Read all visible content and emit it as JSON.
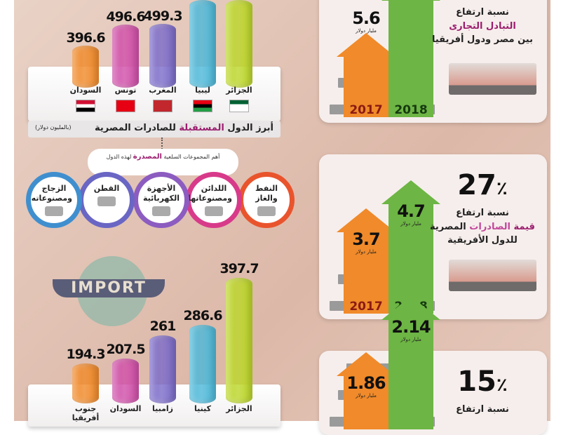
{
  "colors": {
    "orange": "#f08a2a",
    "pink": "#d04fa9",
    "purple": "#7c6cc9",
    "cyan": "#4db8d8",
    "lime": "#bcd62a",
    "green": "#6db544",
    "highlight": "#9b1d6e"
  },
  "chart_data": [
    {
      "type": "bar",
      "title": "أبرز الدول المستقبلة للصادرات المصرية",
      "unit": "(بالمليون دولار)",
      "categories": [
        "السودان",
        "تونس",
        "المغرب",
        "ليبيا",
        "الجزائر"
      ],
      "values": [
        396.6,
        496.6,
        499.3,
        null,
        null
      ],
      "value_labels": [
        "396.6",
        "496.6",
        "499.3",
        "",
        ""
      ]
    },
    {
      "type": "bar",
      "categories": [
        "جنوب أفريقيا",
        "السودان",
        "زامبيا",
        "كينيا",
        "الجزائر"
      ],
      "values": [
        194.3,
        207.5,
        261,
        286.6,
        397.7
      ],
      "value_labels": [
        "194.3",
        "207.5",
        "261",
        "286.6",
        "397.7"
      ]
    }
  ],
  "exports": {
    "title_a": "أبرز الدول ",
    "title_hl": "المستقبلة",
    "title_b": " للصادرات المصرية",
    "unit": "(بالمليون دولار)"
  },
  "goods": {
    "caption_a": "أهم المجموعات السلعية ",
    "caption_hl": "المصدرة",
    "caption_b": " لهذه الدول",
    "items": [
      {
        "label": "النفط والغاز",
        "icon": "oil-barrel-icon"
      },
      {
        "label": "اللدائن ومصنوعاتها",
        "icon": "plastic-bottles-icon"
      },
      {
        "label": "الأجهزة الكهربائية",
        "icon": "appliances-icon"
      },
      {
        "label": "القطن",
        "icon": "cotton-icon"
      },
      {
        "label": "الزجاج ومصنوعاته",
        "icon": "glass-door-icon"
      }
    ]
  },
  "imports": {
    "banner": "IMPORT"
  },
  "panels": [
    {
      "pct": "",
      "line1": "نسبة ارتفاع",
      "line2": "التبادل التجارى",
      "line3": "بين مصر ودول أفريقيا",
      "v2017": "",
      "v2018": "5.6",
      "unit": "مليار دولار",
      "y2017": "2017",
      "y2018": "2018"
    },
    {
      "pct": "27",
      "pct_sign": "٪",
      "line1": "نسبة ارتفاع",
      "line2a": "قيمة ",
      "line2b": "الصادرات",
      "line2c": " المصرية",
      "line3": "للدول الأفريقية",
      "v2017": "3.7",
      "v2018": "4.7",
      "unit": "مليار دولار",
      "y2017": "2017",
      "y2018": "2018"
    },
    {
      "pct": "15",
      "pct_sign": "٪",
      "line1": "نسبة ارتفاع",
      "v2017": "1.86",
      "v2018": "2.14",
      "unit": "مليار دولار"
    }
  ]
}
